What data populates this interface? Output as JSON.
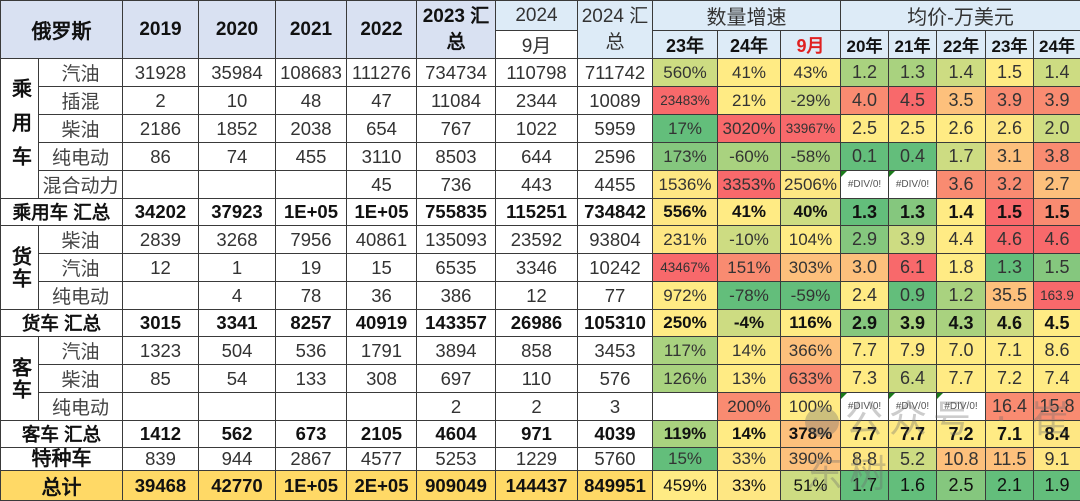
{
  "table": {
    "corner_label": "俄罗斯",
    "year_headers": [
      "2019",
      "2020",
      "2021",
      "2022"
    ],
    "h_2023_total": "2023 汇总",
    "h_2024": "2024",
    "h_2024_month": "9月",
    "h_2024_total": "2024 汇总",
    "growth_group": "数量增速",
    "growth_cols": [
      "23年",
      "24年",
      "9月"
    ],
    "price_group": "均价-万美元",
    "price_cols": [
      "20年",
      "21年",
      "22年",
      "23年",
      "24年"
    ],
    "colors": {
      "header_bg": "#d9e1f2",
      "header_light_bg": "#ddebf7",
      "total_bg": "#ffd966",
      "month_header_red": "#e02020",
      "scale_green": "#63be7b",
      "scale_yellow": "#ffeb84",
      "scale_red": "#f8696b"
    },
    "groups": {
      "passenger": {
        "label": "乘用车",
        "rows": [
          {
            "type": "汽油",
            "values": [
              "31928",
              "35984",
              "108683",
              "111276",
              "734734",
              "110798",
              "711742"
            ],
            "growth": [
              "560%",
              "41%",
              "43%"
            ],
            "price": [
              "1.2",
              "1.3",
              "1.4",
              "1.5",
              "1.4"
            ]
          },
          {
            "type": "插混",
            "values": [
              "2",
              "10",
              "48",
              "47",
              "11084",
              "2344",
              "10089"
            ],
            "growth": [
              "23483%",
              "21%",
              "-29%"
            ],
            "price": [
              "4.0",
              "4.5",
              "3.5",
              "3.9",
              "3.9"
            ]
          },
          {
            "type": "柴油",
            "values": [
              "2186",
              "1852",
              "2038",
              "654",
              "767",
              "1022",
              "5959"
            ],
            "growth": [
              "17%",
              "3020%",
              "33967%"
            ],
            "price": [
              "2.5",
              "2.5",
              "2.6",
              "2.6",
              "2.0"
            ]
          },
          {
            "type": "纯电动",
            "values": [
              "86",
              "74",
              "455",
              "3110",
              "8503",
              "644",
              "2596"
            ],
            "growth": [
              "173%",
              "-60%",
              "-58%"
            ],
            "price": [
              "0.1",
              "0.4",
              "1.7",
              "3.1",
              "3.8"
            ]
          },
          {
            "type": "混合动力",
            "values": [
              "",
              "",
              "",
              "45",
              "736",
              "443",
              "4455"
            ],
            "growth": [
              "1536%",
              "3353%",
              "2506%"
            ],
            "price": [
              "#DIV/0!",
              "#DIV/0!",
              "3.6",
              "3.2",
              "2.7"
            ]
          }
        ],
        "summary": {
          "label": "乘用车 汇总",
          "values": [
            "34202",
            "37923",
            "1E+05",
            "1E+05",
            "755835",
            "115251",
            "734842"
          ],
          "growth": [
            "556%",
            "41%",
            "40%"
          ],
          "price": [
            "1.3",
            "1.3",
            "1.4",
            "1.5",
            "1.5"
          ]
        }
      },
      "truck": {
        "label": "货车",
        "rows": [
          {
            "type": "柴油",
            "values": [
              "2839",
              "3268",
              "7956",
              "40861",
              "135093",
              "23592",
              "93804"
            ],
            "growth": [
              "231%",
              "-10%",
              "104%"
            ],
            "price": [
              "2.9",
              "3.9",
              "4.4",
              "4.6",
              "4.6"
            ]
          },
          {
            "type": "汽油",
            "values": [
              "12",
              "1",
              "19",
              "15",
              "6535",
              "3346",
              "10242"
            ],
            "growth": [
              "43467%",
              "151%",
              "303%"
            ],
            "price": [
              "3.0",
              "6.1",
              "1.8",
              "1.3",
              "1.5"
            ]
          },
          {
            "type": "纯电动",
            "values": [
              "",
              "4",
              "78",
              "36",
              "386",
              "12",
              "77"
            ],
            "growth": [
              "972%",
              "-78%",
              "-59%"
            ],
            "price": [
              "2.4",
              "0.9",
              "1.2",
              "35.5",
              "163.9"
            ]
          }
        ],
        "summary": {
          "label": "货车 汇总",
          "values": [
            "3015",
            "3341",
            "8257",
            "40919",
            "143357",
            "26986",
            "105310"
          ],
          "growth": [
            "250%",
            "-4%",
            "116%"
          ],
          "price": [
            "2.9",
            "3.9",
            "4.3",
            "4.6",
            "4.5"
          ]
        }
      },
      "bus": {
        "label": "客车",
        "rows": [
          {
            "type": "汽油",
            "values": [
              "1323",
              "504",
              "536",
              "1791",
              "3894",
              "858",
              "3453"
            ],
            "growth": [
              "117%",
              "14%",
              "366%"
            ],
            "price": [
              "7.7",
              "7.9",
              "7.0",
              "7.1",
              "8.6"
            ]
          },
          {
            "type": "柴油",
            "values": [
              "85",
              "54",
              "133",
              "308",
              "697",
              "110",
              "576"
            ],
            "growth": [
              "126%",
              "13%",
              "633%"
            ],
            "price": [
              "7.3",
              "6.4",
              "7.7",
              "7.2",
              "7.4"
            ]
          },
          {
            "type": "纯电动",
            "values": [
              "",
              "",
              "",
              "",
              "2",
              "2",
              "3"
            ],
            "growth": [
              "",
              "200%",
              "100%"
            ],
            "price": [
              "#DIV/0!",
              "#DIV/0!",
              "#DIV/0!",
              "16.4",
              "15.8"
            ]
          }
        ],
        "summary": {
          "label": "客车 汇总",
          "values": [
            "1412",
            "562",
            "673",
            "2105",
            "4604",
            "971",
            "4039"
          ],
          "growth": [
            "119%",
            "14%",
            "378%"
          ],
          "price": [
            "7.7",
            "7.7",
            "7.2",
            "7.1",
            "8.4"
          ]
        }
      }
    },
    "special": {
      "label": "特种车",
      "values": [
        "839",
        "944",
        "2867",
        "4577",
        "5253",
        "1229",
        "5760"
      ],
      "growth": [
        "15%",
        "33%",
        "390%"
      ],
      "price": [
        "8.8",
        "5.2",
        "10.8",
        "11.5",
        "9.1"
      ]
    },
    "total": {
      "label": "总计",
      "values": [
        "39468",
        "42770",
        "1E+05",
        "2E+05",
        "909049",
        "144437",
        "849951"
      ],
      "growth": [
        "459%",
        "33%",
        "51%"
      ],
      "price": [
        "1.7",
        "1.6",
        "2.5",
        "2.1",
        "1.9"
      ]
    }
  },
  "watermark": {
    "text": "公众号 · 崔东树"
  }
}
